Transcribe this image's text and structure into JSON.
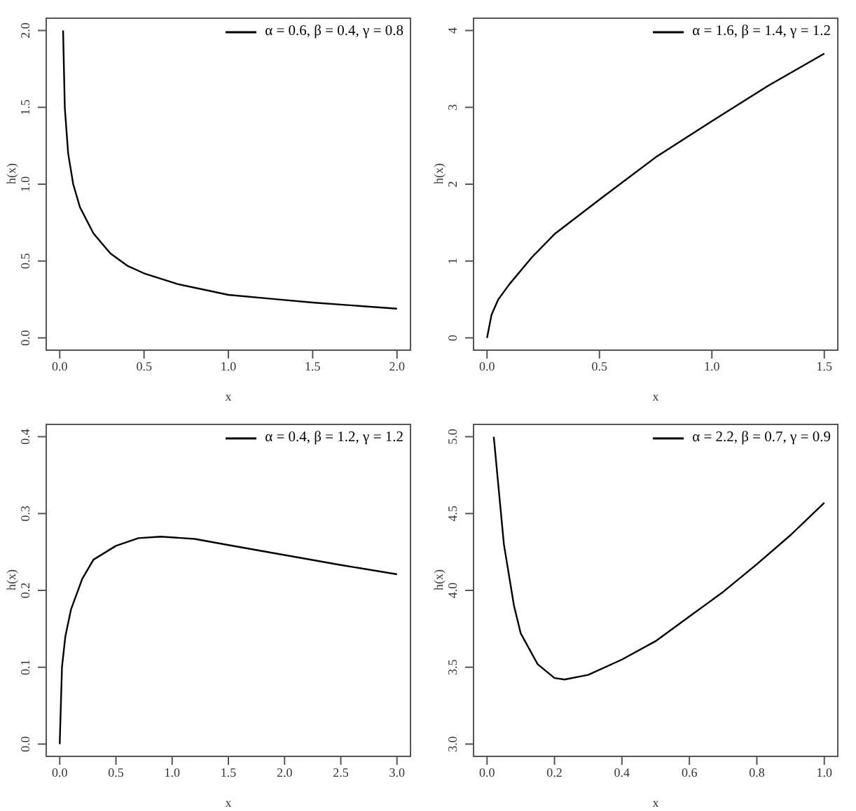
{
  "chart_data": [
    {
      "type": "line",
      "xlabel": "x",
      "ylabel": "h(x)",
      "xlim": [
        -0.08,
        2.08
      ],
      "ylim": [
        -0.08,
        2.08
      ],
      "xticks": [
        {
          "value": 0,
          "label": "0.0"
        },
        {
          "value": 0.5,
          "label": "0.5"
        },
        {
          "value": 1,
          "label": "1.0"
        },
        {
          "value": 1.5,
          "label": "1.5"
        },
        {
          "value": 2,
          "label": "2.0"
        }
      ],
      "yticks": [
        {
          "value": 0,
          "label": "0.0"
        },
        {
          "value": 0.5,
          "label": "0.5"
        },
        {
          "value": 1,
          "label": "1.0"
        },
        {
          "value": 1.5,
          "label": "1.5"
        },
        {
          "value": 2,
          "label": "2.0"
        }
      ],
      "legend": "top right",
      "marker": "none",
      "line_style": "solid",
      "series": [
        {
          "name": "α = 0.6, β = 0.4, γ = 0.8",
          "color": "#000000",
          "x": [
            0.02,
            0.03,
            0.05,
            0.08,
            0.12,
            0.2,
            0.3,
            0.4,
            0.5,
            0.7,
            1.0,
            1.3,
            1.5,
            1.75,
            2.0
          ],
          "values": [
            2.0,
            1.5,
            1.2,
            1.0,
            0.85,
            0.68,
            0.55,
            0.47,
            0.42,
            0.35,
            0.28,
            0.25,
            0.23,
            0.21,
            0.19
          ]
        }
      ]
    },
    {
      "type": "line",
      "xlabel": "x",
      "ylabel": "h(x)",
      "xlim": [
        -0.06,
        1.56
      ],
      "ylim": [
        -0.16,
        4.16
      ],
      "xticks": [
        {
          "value": 0,
          "label": "0.0"
        },
        {
          "value": 0.5,
          "label": "0.5"
        },
        {
          "value": 1,
          "label": "1.0"
        },
        {
          "value": 1.5,
          "label": "1.5"
        }
      ],
      "yticks": [
        0,
        1,
        2,
        3,
        4
      ],
      "legend": "top right",
      "marker": "none",
      "line_style": "solid",
      "series": [
        {
          "name": "α = 1.6, β = 1.4, γ = 1.2",
          "color": "#000000",
          "x": [
            0,
            0.02,
            0.05,
            0.1,
            0.2,
            0.3,
            0.5,
            0.75,
            1.0,
            1.25,
            1.5
          ],
          "values": [
            0,
            0.3,
            0.5,
            0.7,
            1.05,
            1.35,
            1.8,
            2.35,
            2.82,
            3.28,
            3.7
          ]
        }
      ]
    },
    {
      "type": "line",
      "xlabel": "x",
      "ylabel": "h(x)",
      "xlim": [
        -0.12,
        3.12
      ],
      "ylim": [
        -0.016,
        0.416
      ],
      "xticks": [
        {
          "value": 0,
          "label": "0.0"
        },
        {
          "value": 0.5,
          "label": "0.5"
        },
        {
          "value": 1,
          "label": "1.0"
        },
        {
          "value": 1.5,
          "label": "1.5"
        },
        {
          "value": 2,
          "label": "2.0"
        },
        {
          "value": 2.5,
          "label": "2.5"
        },
        {
          "value": 3,
          "label": "3.0"
        }
      ],
      "yticks": [
        {
          "value": 0,
          "label": "0.0"
        },
        0.1,
        0.2,
        0.3,
        0.4
      ],
      "legend": "top right",
      "marker": "none",
      "line_style": "solid",
      "series": [
        {
          "name": "α = 0.4, β = 1.2, γ = 1.2",
          "color": "#000000",
          "x": [
            0,
            0.02,
            0.05,
            0.1,
            0.2,
            0.3,
            0.5,
            0.7,
            0.9,
            1.2,
            1.5,
            2.0,
            2.5,
            3.0
          ],
          "values": [
            0,
            0.1,
            0.14,
            0.175,
            0.215,
            0.24,
            0.258,
            0.268,
            0.27,
            0.267,
            0.259,
            0.246,
            0.233,
            0.221
          ]
        }
      ]
    },
    {
      "type": "line",
      "xlabel": "x",
      "ylabel": "h(x)",
      "xlim": [
        -0.04,
        1.04
      ],
      "ylim": [
        2.92,
        5.08
      ],
      "xticks": [
        {
          "value": 0,
          "label": "0.0"
        },
        0.2,
        0.4,
        0.6,
        0.8,
        {
          "value": 1,
          "label": "1.0"
        }
      ],
      "yticks": [
        {
          "value": 3,
          "label": "3.0"
        },
        3.5,
        {
          "value": 4,
          "label": "4.0"
        },
        4.5,
        {
          "value": 5,
          "label": "5.0"
        }
      ],
      "legend": "top right",
      "marker": "none",
      "line_style": "solid",
      "series": [
        {
          "name": "α = 2.2, β = 0.7, γ = 0.9",
          "color": "#000000",
          "x": [
            0.02,
            0.05,
            0.08,
            0.1,
            0.15,
            0.2,
            0.23,
            0.3,
            0.4,
            0.5,
            0.6,
            0.7,
            0.8,
            0.9,
            1.0
          ],
          "values": [
            5.0,
            4.3,
            3.9,
            3.72,
            3.52,
            3.43,
            3.42,
            3.45,
            3.55,
            3.67,
            3.83,
            3.99,
            4.17,
            4.36,
            4.57
          ]
        }
      ]
    }
  ]
}
